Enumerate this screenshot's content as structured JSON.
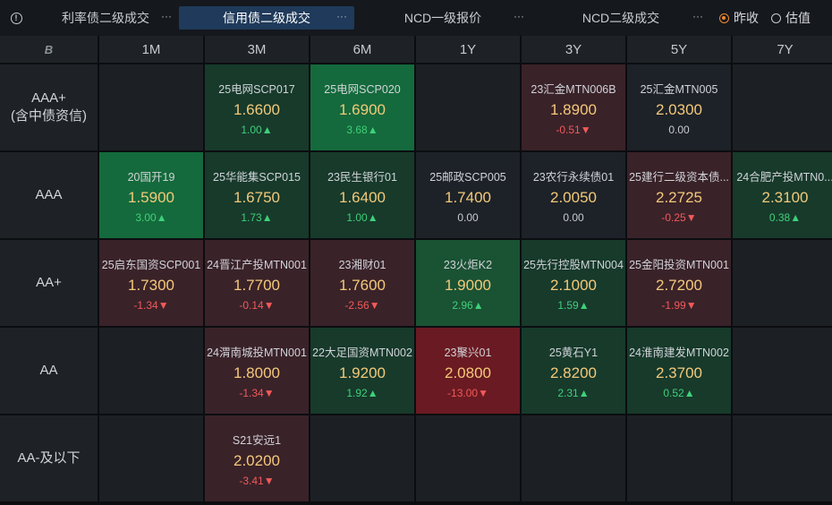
{
  "tabs": [
    {
      "label": "利率债二级成交",
      "more": "···"
    },
    {
      "label": "信用债二级成交",
      "more": "···"
    },
    {
      "label": "NCD一级报价",
      "more": "···"
    },
    {
      "label": "NCD二级成交",
      "more": "···"
    }
  ],
  "radio": {
    "option1": "昨收",
    "option2": "估值",
    "selected": "昨收"
  },
  "corner": "B",
  "columns": [
    "1M",
    "3M",
    "6M",
    "1Y",
    "3Y",
    "5Y",
    "7Y"
  ],
  "rows": [
    {
      "label": "AAA+\n(含中债资信)",
      "cells": [
        null,
        {
          "name": "25电网SCP017",
          "rate": "1.6600",
          "chg": "1.00▲",
          "dir": "up",
          "tone": "g1"
        },
        {
          "name": "25电网SCP020",
          "rate": "1.6900",
          "chg": "3.68▲",
          "dir": "up",
          "tone": "g3"
        },
        null,
        {
          "name": "23汇金MTN006B",
          "rate": "1.8900",
          "chg": "-0.51▼",
          "dir": "down",
          "tone": "r1"
        },
        {
          "name": "25汇金MTN005",
          "rate": "2.0300",
          "chg": "0.00",
          "dir": "flat",
          "tone": "n"
        },
        null
      ]
    },
    {
      "label": "AAA",
      "cells": [
        {
          "name": "20国开19",
          "rate": "1.5900",
          "chg": "3.00▲",
          "dir": "up",
          "tone": "g3"
        },
        {
          "name": "25华能集SCP015",
          "rate": "1.6750",
          "chg": "1.73▲",
          "dir": "up",
          "tone": "g1"
        },
        {
          "name": "23民生银行01",
          "rate": "1.6400",
          "chg": "1.00▲",
          "dir": "up",
          "tone": "g1"
        },
        {
          "name": "25邮政SCP005",
          "rate": "1.7400",
          "chg": "0.00",
          "dir": "flat",
          "tone": "n"
        },
        {
          "name": "23农行永续债01",
          "rate": "2.0050",
          "chg": "0.00",
          "dir": "flat",
          "tone": "n"
        },
        {
          "name": "25建行二级资本债...",
          "rate": "2.2725",
          "chg": "-0.25▼",
          "dir": "down",
          "tone": "r1"
        },
        {
          "name": "24合肥产投MTN0...",
          "rate": "2.3100",
          "chg": "0.38▲",
          "dir": "up",
          "tone": "g1"
        }
      ]
    },
    {
      "label": "AA+",
      "cells": [
        {
          "name": "25启东国资SCP001",
          "rate": "1.7300",
          "chg": "-1.34▼",
          "dir": "down",
          "tone": "r1"
        },
        {
          "name": "24晋江产投MTN001",
          "rate": "1.7700",
          "chg": "-0.14▼",
          "dir": "down",
          "tone": "r1"
        },
        {
          "name": "23湘财01",
          "rate": "1.7600",
          "chg": "-2.56▼",
          "dir": "down",
          "tone": "r1"
        },
        {
          "name": "23火炬K2",
          "rate": "1.9000",
          "chg": "2.96▲",
          "dir": "up",
          "tone": "g2"
        },
        {
          "name": "25先行控股MTN004",
          "rate": "2.1000",
          "chg": "1.59▲",
          "dir": "up",
          "tone": "g1"
        },
        {
          "name": "25金阳投资MTN001",
          "rate": "2.7200",
          "chg": "-1.99▼",
          "dir": "down",
          "tone": "r1"
        },
        null
      ]
    },
    {
      "label": "AA",
      "cells": [
        null,
        {
          "name": "24渭南城投MTN001",
          "rate": "1.8000",
          "chg": "-1.34▼",
          "dir": "down",
          "tone": "r1"
        },
        {
          "name": "22大足国资MTN002",
          "rate": "1.9200",
          "chg": "1.92▲",
          "dir": "up",
          "tone": "g1"
        },
        {
          "name": "23聚兴01",
          "rate": "2.0800",
          "chg": "-13.00▼",
          "dir": "down",
          "tone": "r2"
        },
        {
          "name": "25黄石Y1",
          "rate": "2.8200",
          "chg": "2.31▲",
          "dir": "up",
          "tone": "g1"
        },
        {
          "name": "24淮南建发MTN002",
          "rate": "2.3700",
          "chg": "0.52▲",
          "dir": "up",
          "tone": "g1"
        },
        null
      ]
    },
    {
      "label": "AA-及以下",
      "cells": [
        null,
        {
          "name": "S21安远1",
          "rate": "2.0200",
          "chg": "-3.41▼",
          "dir": "down",
          "tone": "r1"
        },
        null,
        null,
        null,
        null,
        null
      ]
    }
  ]
}
